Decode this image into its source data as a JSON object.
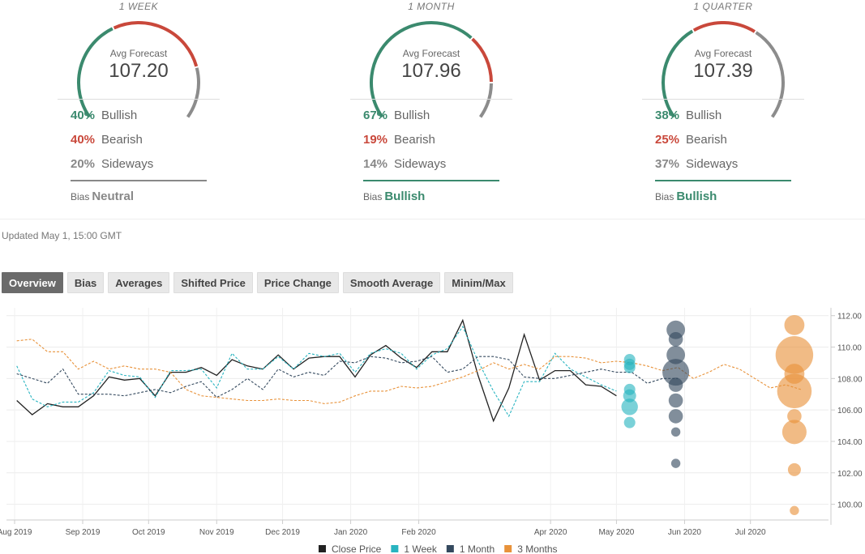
{
  "forecasts": [
    {
      "period": "1 WEEK",
      "avg_label": "Avg Forecast",
      "avg_value": "107.20",
      "gauge_fractions": {
        "bullish": 0.4,
        "bearish": 0.4,
        "sideways": 0.2
      },
      "bullish_pct": "40%",
      "bullish_label": "Bullish",
      "bearish_pct": "40%",
      "bearish_label": "Bearish",
      "sideways_pct": "20%",
      "sideways_label": "Sideways",
      "bias_label": "Bias",
      "bias_value": "Neutral",
      "bias_color": "#888888"
    },
    {
      "period": "1 MONTH",
      "avg_label": "Avg Forecast",
      "avg_value": "107.96",
      "gauge_fractions": {
        "bullish": 0.67,
        "bearish": 0.19,
        "sideways": 0.14
      },
      "bullish_pct": "67%",
      "bullish_label": "Bullish",
      "bearish_pct": "19%",
      "bearish_label": "Bearish",
      "sideways_pct": "14%",
      "sideways_label": "Sideways",
      "bias_label": "Bias",
      "bias_value": "Bullish",
      "bias_color": "#3b8a6e"
    },
    {
      "period": "1 QUARTER",
      "avg_label": "Avg Forecast",
      "avg_value": "107.39",
      "gauge_fractions": {
        "bullish": 0.38,
        "bearish": 0.25,
        "sideways": 0.37
      },
      "bullish_pct": "38%",
      "bullish_label": "Bullish",
      "bearish_pct": "25%",
      "bearish_label": "Bearish",
      "sideways_pct": "37%",
      "sideways_label": "Sideways",
      "bias_label": "Bias",
      "bias_value": "Bullish",
      "bias_color": "#3b8a6e"
    }
  ],
  "colors": {
    "bullish": "#3b8a6e",
    "bearish": "#c9483b",
    "sideways": "#8c8c8c"
  },
  "updated": "Updated May 1, 15:00 GMT",
  "tabs": [
    {
      "label": "Overview",
      "active": true
    },
    {
      "label": "Bias",
      "active": false
    },
    {
      "label": "Averages",
      "active": false
    },
    {
      "label": "Shifted Price",
      "active": false
    },
    {
      "label": "Price Change",
      "active": false
    },
    {
      "label": "Smooth Average",
      "active": false
    },
    {
      "label": "Minim/Max",
      "active": false
    }
  ],
  "chart_data": {
    "type": "line",
    "title": "",
    "xlabel": "",
    "ylabel": "",
    "x_range": [
      "2019-08-01",
      "2020-07-31"
    ],
    "ylim": [
      99,
      112.5
    ],
    "x_ticks": [
      {
        "label": "Aug 2019",
        "date": "2019-08-01"
      },
      {
        "label": "Sep 2019",
        "date": "2019-09-01"
      },
      {
        "label": "Oct 2019",
        "date": "2019-10-01"
      },
      {
        "label": "Nov 2019",
        "date": "2019-11-01"
      },
      {
        "label": "Dec 2019",
        "date": "2019-12-01"
      },
      {
        "label": "Jan 2020",
        "date": "2020-01-01"
      },
      {
        "label": "Feb 2020",
        "date": "2020-02-01"
      },
      {
        "label": "Apr 2020",
        "date": "2020-04-01"
      },
      {
        "label": "May 2020",
        "date": "2020-05-01"
      },
      {
        "label": "Jun 2020",
        "date": "2020-06-01"
      },
      {
        "label": "Jul 2020",
        "date": "2020-07-01"
      }
    ],
    "y_ticks": [
      "100.00",
      "102.00",
      "104.00",
      "106.00",
      "108.00",
      "110.00",
      "112.00"
    ],
    "grid": true,
    "legend_position": "bottom",
    "series": [
      {
        "name": "Close Price",
        "color": "#222222",
        "dashed": false,
        "points": [
          [
            "2019-08-02",
            106.6
          ],
          [
            "2019-08-09",
            105.7
          ],
          [
            "2019-08-16",
            106.4
          ],
          [
            "2019-08-23",
            106.2
          ],
          [
            "2019-08-30",
            106.2
          ],
          [
            "2019-09-06",
            106.9
          ],
          [
            "2019-09-13",
            108.1
          ],
          [
            "2019-09-20",
            107.9
          ],
          [
            "2019-09-27",
            108.0
          ],
          [
            "2019-10-04",
            106.9
          ],
          [
            "2019-10-11",
            108.4
          ],
          [
            "2019-10-18",
            108.4
          ],
          [
            "2019-10-25",
            108.7
          ],
          [
            "2019-11-01",
            108.2
          ],
          [
            "2019-11-08",
            109.2
          ],
          [
            "2019-11-15",
            108.8
          ],
          [
            "2019-11-22",
            108.6
          ],
          [
            "2019-11-29",
            109.5
          ],
          [
            "2019-12-06",
            108.6
          ],
          [
            "2019-12-13",
            109.3
          ],
          [
            "2019-12-20",
            109.4
          ],
          [
            "2019-12-27",
            109.4
          ],
          [
            "2020-01-03",
            108.1
          ],
          [
            "2020-01-10",
            109.5
          ],
          [
            "2020-01-17",
            110.1
          ],
          [
            "2020-01-24",
            109.3
          ],
          [
            "2020-01-31",
            108.7
          ],
          [
            "2020-02-07",
            109.7
          ],
          [
            "2020-02-14",
            109.7
          ],
          [
            "2020-02-21",
            111.7
          ],
          [
            "2020-02-28",
            108.2
          ],
          [
            "2020-03-06",
            105.3
          ],
          [
            "2020-03-13",
            107.4
          ],
          [
            "2020-03-20",
            110.8
          ],
          [
            "2020-03-27",
            107.9
          ],
          [
            "2020-04-03",
            108.5
          ],
          [
            "2020-04-10",
            108.5
          ],
          [
            "2020-04-17",
            107.6
          ],
          [
            "2020-04-24",
            107.5
          ],
          [
            "2020-05-01",
            106.9
          ]
        ]
      },
      {
        "name": "1 Week",
        "color": "#28b4c0",
        "dashed": true,
        "points": [
          [
            "2019-08-02",
            108.8
          ],
          [
            "2019-08-09",
            106.7
          ],
          [
            "2019-08-16",
            106.2
          ],
          [
            "2019-08-23",
            106.5
          ],
          [
            "2019-08-30",
            106.5
          ],
          [
            "2019-09-06",
            107.1
          ],
          [
            "2019-09-13",
            108.5
          ],
          [
            "2019-09-20",
            108.2
          ],
          [
            "2019-09-27",
            108.1
          ],
          [
            "2019-10-04",
            106.8
          ],
          [
            "2019-10-11",
            108.5
          ],
          [
            "2019-10-18",
            108.5
          ],
          [
            "2019-10-25",
            108.6
          ],
          [
            "2019-11-01",
            107.4
          ],
          [
            "2019-11-08",
            109.6
          ],
          [
            "2019-11-15",
            108.6
          ],
          [
            "2019-11-22",
            108.6
          ],
          [
            "2019-11-29",
            109.4
          ],
          [
            "2019-12-06",
            108.6
          ],
          [
            "2019-12-13",
            109.6
          ],
          [
            "2019-12-20",
            109.4
          ],
          [
            "2019-12-27",
            109.6
          ],
          [
            "2020-01-03",
            108.4
          ],
          [
            "2020-01-10",
            109.6
          ],
          [
            "2020-01-17",
            109.9
          ],
          [
            "2020-01-24",
            109.6
          ],
          [
            "2020-01-31",
            108.6
          ],
          [
            "2020-02-07",
            109.5
          ],
          [
            "2020-02-14",
            109.9
          ],
          [
            "2020-02-21",
            111.3
          ],
          [
            "2020-02-28",
            109.1
          ],
          [
            "2020-03-06",
            107.2
          ],
          [
            "2020-03-13",
            105.6
          ],
          [
            "2020-03-20",
            107.8
          ],
          [
            "2020-03-27",
            107.8
          ],
          [
            "2020-04-03",
            109.6
          ],
          [
            "2020-04-10",
            108.6
          ],
          [
            "2020-04-17",
            108.1
          ],
          [
            "2020-04-24",
            107.6
          ],
          [
            "2020-05-01",
            107.2
          ]
        ]
      },
      {
        "name": "1 Month",
        "color": "#34495e",
        "dashed": true,
        "points": [
          [
            "2019-08-02",
            108.3
          ],
          [
            "2019-08-09",
            108.0
          ],
          [
            "2019-08-16",
            107.7
          ],
          [
            "2019-08-23",
            108.6
          ],
          [
            "2019-08-30",
            107.0
          ],
          [
            "2019-09-06",
            107.0
          ],
          [
            "2019-09-13",
            107.0
          ],
          [
            "2019-09-20",
            106.9
          ],
          [
            "2019-09-27",
            107.1
          ],
          [
            "2019-10-04",
            107.3
          ],
          [
            "2019-10-11",
            107.1
          ],
          [
            "2019-10-18",
            107.5
          ],
          [
            "2019-10-25",
            107.8
          ],
          [
            "2019-11-01",
            106.8
          ],
          [
            "2019-11-08",
            107.3
          ],
          [
            "2019-11-15",
            108.0
          ],
          [
            "2019-11-22",
            107.3
          ],
          [
            "2019-11-29",
            108.6
          ],
          [
            "2019-12-06",
            108.1
          ],
          [
            "2019-12-13",
            108.4
          ],
          [
            "2019-12-20",
            108.2
          ],
          [
            "2019-12-27",
            109.1
          ],
          [
            "2020-01-03",
            109.0
          ],
          [
            "2020-01-10",
            109.4
          ],
          [
            "2020-01-17",
            109.3
          ],
          [
            "2020-01-24",
            109.0
          ],
          [
            "2020-01-31",
            109.1
          ],
          [
            "2020-02-07",
            109.4
          ],
          [
            "2020-02-14",
            108.4
          ],
          [
            "2020-02-21",
            108.6
          ],
          [
            "2020-02-28",
            109.4
          ],
          [
            "2020-03-06",
            109.4
          ],
          [
            "2020-03-13",
            109.2
          ],
          [
            "2020-03-20",
            108.1
          ],
          [
            "2020-03-27",
            108.0
          ],
          [
            "2020-04-03",
            108.0
          ],
          [
            "2020-04-10",
            108.2
          ],
          [
            "2020-04-17",
            108.4
          ],
          [
            "2020-04-24",
            108.6
          ],
          [
            "2020-05-01",
            108.4
          ],
          [
            "2020-05-08",
            108.4
          ],
          [
            "2020-05-15",
            107.7
          ],
          [
            "2020-05-22",
            108.0
          ],
          [
            "2020-05-29",
            108.0
          ]
        ]
      },
      {
        "name": "3 Months",
        "color": "#e8923a",
        "dashed": true,
        "points": [
          [
            "2019-08-02",
            110.4
          ],
          [
            "2019-08-09",
            110.5
          ],
          [
            "2019-08-16",
            109.7
          ],
          [
            "2019-08-23",
            109.7
          ],
          [
            "2019-08-30",
            108.6
          ],
          [
            "2019-09-06",
            109.1
          ],
          [
            "2019-09-13",
            108.6
          ],
          [
            "2019-09-20",
            108.8
          ],
          [
            "2019-09-27",
            108.6
          ],
          [
            "2019-10-04",
            108.6
          ],
          [
            "2019-10-11",
            108.4
          ],
          [
            "2019-10-18",
            107.3
          ],
          [
            "2019-10-25",
            106.9
          ],
          [
            "2019-11-01",
            106.8
          ],
          [
            "2019-11-08",
            106.7
          ],
          [
            "2019-11-15",
            106.6
          ],
          [
            "2019-11-22",
            106.6
          ],
          [
            "2019-11-29",
            106.7
          ],
          [
            "2019-12-06",
            106.6
          ],
          [
            "2019-12-13",
            106.6
          ],
          [
            "2019-12-20",
            106.4
          ],
          [
            "2019-12-27",
            106.5
          ],
          [
            "2020-01-03",
            106.9
          ],
          [
            "2020-01-10",
            107.2
          ],
          [
            "2020-01-17",
            107.2
          ],
          [
            "2020-01-24",
            107.5
          ],
          [
            "2020-01-31",
            107.4
          ],
          [
            "2020-02-07",
            107.5
          ],
          [
            "2020-02-14",
            107.8
          ],
          [
            "2020-02-21",
            108.1
          ],
          [
            "2020-02-28",
            108.5
          ],
          [
            "2020-03-06",
            109.0
          ],
          [
            "2020-03-13",
            108.6
          ],
          [
            "2020-03-20",
            108.9
          ],
          [
            "2020-03-27",
            108.6
          ],
          [
            "2020-04-03",
            109.4
          ],
          [
            "2020-04-10",
            109.4
          ],
          [
            "2020-04-17",
            109.3
          ],
          [
            "2020-04-24",
            109.0
          ],
          [
            "2020-05-01",
            109.1
          ],
          [
            "2020-05-08",
            109.0
          ],
          [
            "2020-05-15",
            108.8
          ],
          [
            "2020-05-22",
            108.5
          ],
          [
            "2020-05-29",
            108.7
          ],
          [
            "2020-06-05",
            108.0
          ],
          [
            "2020-06-12",
            108.4
          ],
          [
            "2020-06-19",
            108.9
          ],
          [
            "2020-06-26",
            108.6
          ],
          [
            "2020-07-03",
            108.0
          ],
          [
            "2020-07-10",
            107.4
          ],
          [
            "2020-07-17",
            107.6
          ],
          [
            "2020-07-24",
            107.3
          ]
        ]
      }
    ],
    "forecast_bubbles": [
      {
        "series": "1 Week",
        "date": "2020-05-07",
        "values": [
          {
            "y": 109.2,
            "weight": 1
          },
          {
            "y": 108.9,
            "weight": 1
          },
          {
            "y": 108.7,
            "weight": 1
          },
          {
            "y": 107.3,
            "weight": 1
          },
          {
            "y": 106.9,
            "weight": 1.5
          },
          {
            "y": 106.2,
            "weight": 3
          },
          {
            "y": 105.2,
            "weight": 1
          }
        ]
      },
      {
        "series": "1 Month",
        "date": "2020-05-28",
        "values": [
          {
            "y": 111.1,
            "weight": 4
          },
          {
            "y": 110.5,
            "weight": 2
          },
          {
            "y": 109.5,
            "weight": 4
          },
          {
            "y": 108.4,
            "weight": 10
          },
          {
            "y": 107.6,
            "weight": 2
          },
          {
            "y": 106.6,
            "weight": 2
          },
          {
            "y": 105.6,
            "weight": 2
          },
          {
            "y": 104.6,
            "weight": 0.5
          },
          {
            "y": 102.6,
            "weight": 0.5
          }
        ]
      },
      {
        "series": "3 Months",
        "date": "2020-07-21",
        "values": [
          {
            "y": 111.4,
            "weight": 5
          },
          {
            "y": 109.5,
            "weight": 22
          },
          {
            "y": 108.3,
            "weight": 5
          },
          {
            "y": 107.2,
            "weight": 18
          },
          {
            "y": 105.6,
            "weight": 2
          },
          {
            "y": 104.6,
            "weight": 8
          },
          {
            "y": 102.2,
            "weight": 1.5
          },
          {
            "y": 99.6,
            "weight": 0.5
          }
        ]
      }
    ]
  },
  "legend": [
    {
      "label": "Close Price",
      "color": "#222222"
    },
    {
      "label": "1 Week",
      "color": "#28b4c0"
    },
    {
      "label": "1 Month",
      "color": "#34495e"
    },
    {
      "label": "3 Months",
      "color": "#e8923a"
    }
  ]
}
